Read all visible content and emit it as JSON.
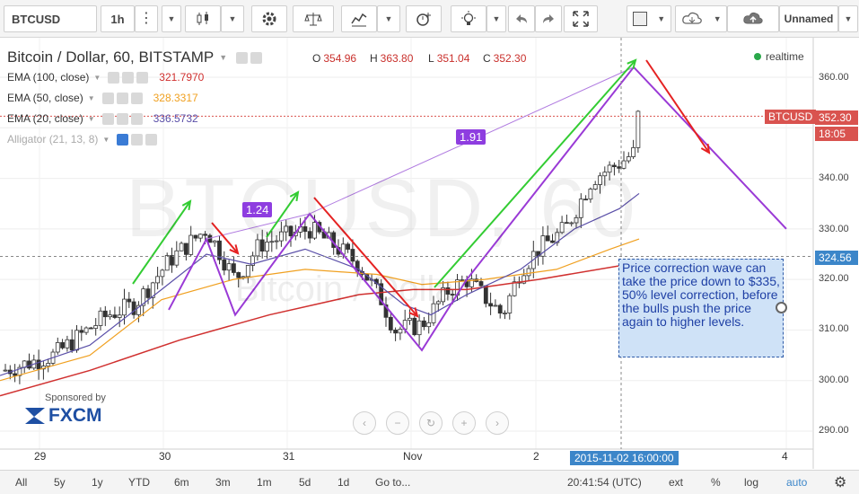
{
  "toolbar": {
    "symbol": "BTCUSD",
    "interval": "1h",
    "layout_name": "Unnamed"
  },
  "legend": {
    "title": "Bitcoin / Dollar, 60, BITSTAMP",
    "open_label": "O",
    "open": "354.96",
    "high_label": "H",
    "high": "363.80",
    "low_label": "L",
    "low": "351.04",
    "close_label": "C",
    "close": "352.30",
    "realtime": "realtime"
  },
  "studies": [
    {
      "label": "EMA (100, close)",
      "value": "321.7970",
      "color": "#d0302f"
    },
    {
      "label": "EMA (50, close)",
      "value": "328.3317",
      "color": "#f0a020"
    },
    {
      "label": "EMA (20, close)",
      "value": "336.5732",
      "color": "#5a4fa8"
    },
    {
      "label": "Alligator (21, 13, 8)",
      "value": "",
      "color": "#999999"
    }
  ],
  "watermark": {
    "symbol": "BTCUSD, 60",
    "description": "Bitcoin / Dollar"
  },
  "price_axis": {
    "ticks": [
      "360.00",
      "350.00",
      "340.00",
      "330.00",
      "320.00",
      "310.00",
      "300.00",
      "290.00"
    ],
    "last_symbol": "BTCUSD",
    "last_price": "352.30",
    "countdown": "18:05",
    "crosshair_price": "324.56"
  },
  "time_axis": {
    "labels": [
      "29",
      "30",
      "31",
      "Nov",
      "2",
      "4"
    ],
    "crosshair_time": "2015-11-02 16:00:00"
  },
  "drawings": {
    "ratio_1": "1.24",
    "ratio_2": "1.91",
    "note": "Price correction wave can take the price down to $335, 50% level correction, before the bulls push the price again to higher levels."
  },
  "sponsor": {
    "label": "Sponsored by",
    "brand": "FXCM"
  },
  "bottombar": {
    "ranges": [
      "All",
      "5y",
      "1y",
      "YTD",
      "6m",
      "3m",
      "1m",
      "5d",
      "1d"
    ],
    "goto": "Go to...",
    "clock": "20:41:54 (UTC)",
    "ext": "ext",
    "percent": "%",
    "log": "log",
    "auto": "auto"
  },
  "colors": {
    "up": "#3c8a3c",
    "down": "#d0302f",
    "ema100": "#d0302f",
    "ema50": "#f0a020",
    "ema20": "#5a4fa8",
    "wave": "#9a3ad6",
    "green_arrow": "#33cc33",
    "red_arrow": "#e52222",
    "accent": "#3c86c9"
  },
  "icons": [
    "chevron-down-icon",
    "more-icon",
    "candles-icon",
    "gear-icon",
    "compare-icon",
    "indicators-icon",
    "alert-icon",
    "bulb-icon",
    "undo-icon",
    "redo-icon",
    "fullscreen-icon",
    "rectangle-icon",
    "cloud-download-icon",
    "cloud-upload-icon"
  ]
}
